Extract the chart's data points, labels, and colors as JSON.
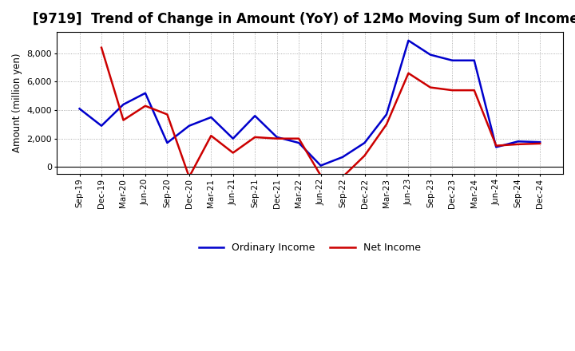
{
  "title": "[9719]  Trend of Change in Amount (YoY) of 12Mo Moving Sum of Incomes",
  "ylabel": "Amount (million yen)",
  "labels": [
    "Sep-19",
    "Dec-19",
    "Mar-20",
    "Jun-20",
    "Sep-20",
    "Dec-20",
    "Mar-21",
    "Jun-21",
    "Sep-21",
    "Dec-21",
    "Mar-22",
    "Jun-22",
    "Sep-22",
    "Dec-22",
    "Mar-23",
    "Jun-23",
    "Sep-23",
    "Dec-23",
    "Mar-24",
    "Jun-24",
    "Sep-24",
    "Dec-24"
  ],
  "ordinary_income": [
    4100,
    2900,
    4400,
    5200,
    1700,
    2900,
    3500,
    2000,
    3600,
    2100,
    1700,
    100,
    700,
    1700,
    3700,
    8900,
    7900,
    7500,
    7500,
    1400,
    1800,
    1750
  ],
  "net_income": [
    null,
    8400,
    3300,
    4300,
    3700,
    -700,
    2200,
    1000,
    2100,
    2000,
    2000,
    -600,
    -700,
    800,
    3000,
    6600,
    5600,
    5400,
    5400,
    1500,
    1600,
    1650
  ],
  "ordinary_color": "#0000cc",
  "net_color": "#cc0000",
  "line_width": 1.8,
  "ylim": [
    -500,
    9500
  ],
  "yticks": [
    0,
    2000,
    4000,
    6000,
    8000
  ],
  "grid_color": "#999999",
  "bg_color": "#ffffff",
  "title_fontsize": 12,
  "legend_ordinary": "Ordinary Income",
  "legend_net": "Net Income"
}
